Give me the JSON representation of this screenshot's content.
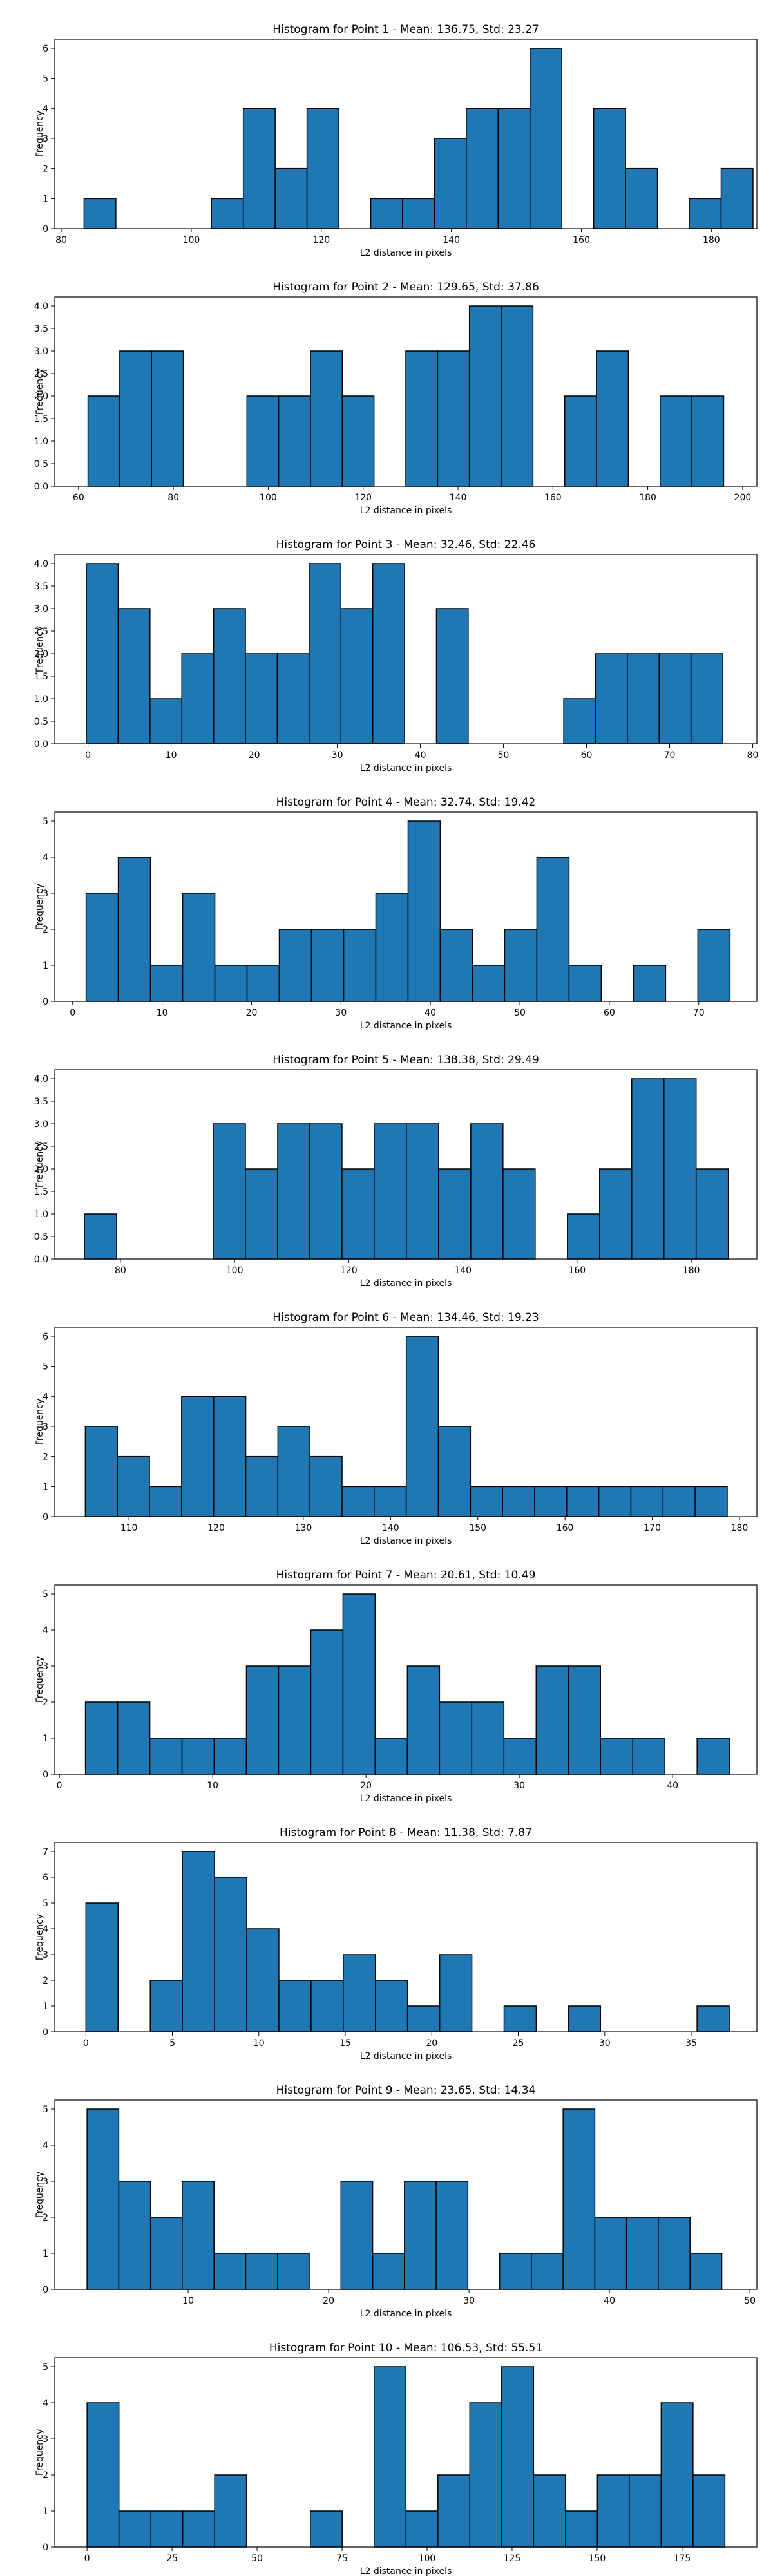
{
  "style": {
    "bar_color": "#1f77b4",
    "edge_color": "#000000",
    "background": "#ffffff"
  },
  "chart_data": [
    {
      "type": "bar",
      "title": "Histogram for Point 1 - Mean: 136.75, Std: 23.27",
      "xlabel": "L2 distance in pixels",
      "ylabel": "Frequency",
      "xlim": [
        79,
        187
      ],
      "ylim": [
        0,
        6.3
      ],
      "xticks": [
        80,
        100,
        120,
        140,
        160,
        180
      ],
      "yticks": [
        0,
        1,
        2,
        3,
        4,
        5,
        6
      ],
      "bin_start": 83.5,
      "bin_width": 4.9,
      "counts": [
        1,
        0,
        0,
        0,
        1,
        4,
        2,
        4,
        0,
        1,
        1,
        3,
        4,
        4,
        6,
        0,
        4,
        2,
        0,
        1,
        2
      ]
    },
    {
      "type": "bar",
      "title": "Histogram for Point 2 - Mean: 129.65, Std: 37.86",
      "xlabel": "L2 distance in pixels",
      "ylabel": "Frequency",
      "xlim": [
        55,
        203
      ],
      "ylim": [
        0,
        4.2
      ],
      "xticks": [
        60,
        80,
        100,
        120,
        140,
        160,
        180,
        200
      ],
      "yticks": [
        0,
        0.5,
        1.0,
        1.5,
        2.0,
        2.5,
        3.0,
        3.5,
        4.0
      ],
      "bin_start": 62,
      "bin_width": 6.7,
      "counts": [
        2,
        3,
        3,
        0,
        0,
        2,
        2,
        3,
        2,
        0,
        3,
        3,
        4,
        4,
        0,
        2,
        3,
        0,
        2,
        2
      ]
    },
    {
      "type": "bar",
      "title": "Histogram for Point 3 - Mean: 32.46, Std: 22.46",
      "xlabel": "L2 distance in pixels",
      "ylabel": "Frequency",
      "xlim": [
        -4,
        80.5
      ],
      "ylim": [
        0,
        4.2
      ],
      "xticks": [
        0,
        10,
        20,
        30,
        40,
        50,
        60,
        70,
        80
      ],
      "yticks": [
        0,
        0.5,
        1.0,
        1.5,
        2.0,
        2.5,
        3.0,
        3.5,
        4.0
      ],
      "bin_start": -0.2,
      "bin_width": 3.83,
      "counts": [
        4,
        3,
        1,
        2,
        3,
        2,
        2,
        4,
        3,
        4,
        0,
        3,
        0,
        0,
        0,
        1,
        2,
        2,
        2,
        2
      ]
    },
    {
      "type": "bar",
      "title": "Histogram for Point 4 - Mean: 32.74, Std: 19.42",
      "xlabel": "L2 distance in pixels",
      "ylabel": "Frequency",
      "xlim": [
        -2,
        76.5
      ],
      "ylim": [
        0,
        5.25
      ],
      "xticks": [
        0,
        10,
        20,
        30,
        40,
        50,
        60,
        70
      ],
      "yticks": [
        0,
        1,
        2,
        3,
        4,
        5
      ],
      "bin_start": 1.5,
      "bin_width": 3.6,
      "counts": [
        3,
        4,
        1,
        3,
        1,
        1,
        2,
        2,
        2,
        3,
        5,
        2,
        1,
        2,
        4,
        1,
        0,
        1,
        0,
        2
      ]
    },
    {
      "type": "bar",
      "title": "Histogram for Point 5 - Mean: 138.38, Std: 29.49",
      "xlabel": "L2 distance in pixels",
      "ylabel": "Frequency",
      "xlim": [
        68.5,
        191.5
      ],
      "ylim": [
        0,
        4.2
      ],
      "xticks": [
        80,
        100,
        120,
        140,
        160,
        180
      ],
      "yticks": [
        0,
        0.5,
        1.0,
        1.5,
        2.0,
        2.5,
        3.0,
        3.5,
        4.0
      ],
      "bin_start": 73.7,
      "bin_width": 5.64,
      "counts": [
        1,
        0,
        0,
        0,
        3,
        2,
        3,
        3,
        2,
        3,
        3,
        2,
        3,
        2,
        0,
        1,
        2,
        4,
        4,
        2
      ]
    },
    {
      "type": "bar",
      "title": "Histogram for Point 6 - Mean: 134.46, Std: 19.23",
      "xlabel": "L2 distance in pixels",
      "ylabel": "Frequency",
      "xlim": [
        101.5,
        182
      ],
      "ylim": [
        0,
        6.3
      ],
      "xticks": [
        110,
        120,
        130,
        140,
        150,
        160,
        170,
        180
      ],
      "yticks": [
        0,
        1,
        2,
        3,
        4,
        5,
        6
      ],
      "bin_start": 105,
      "bin_width": 3.68,
      "counts": [
        3,
        2,
        1,
        4,
        4,
        2,
        3,
        2,
        1,
        1,
        6,
        3,
        1,
        1,
        1,
        1,
        1,
        1,
        1,
        1
      ]
    },
    {
      "type": "bar",
      "title": "Histogram for Point 7 - Mean: 20.61, Std: 10.49",
      "xlabel": "L2 distance in pixels",
      "ylabel": "Frequency",
      "xlim": [
        -0.3,
        45.5
      ],
      "ylim": [
        0,
        5.25
      ],
      "xticks": [
        0,
        10,
        20,
        30,
        40
      ],
      "yticks": [
        0,
        1,
        2,
        3,
        4,
        5
      ],
      "bin_start": 1.7,
      "bin_width": 2.1,
      "counts": [
        2,
        2,
        1,
        1,
        1,
        3,
        3,
        4,
        5,
        1,
        3,
        2,
        2,
        1,
        3,
        3,
        1,
        1,
        0,
        1
      ]
    },
    {
      "type": "bar",
      "title": "Histogram for Point 8 - Mean: 11.38, Std: 7.87",
      "xlabel": "L2 distance in pixels",
      "ylabel": "Frequency",
      "xlim": [
        -1.8,
        38.8
      ],
      "ylim": [
        0,
        7.35
      ],
      "xticks": [
        0,
        5,
        10,
        15,
        20,
        25,
        30,
        35
      ],
      "yticks": [
        0,
        1,
        2,
        3,
        4,
        5,
        6,
        7
      ],
      "bin_start": 0,
      "bin_width": 1.86,
      "counts": [
        5,
        0,
        2,
        7,
        6,
        4,
        2,
        2,
        3,
        2,
        1,
        3,
        0,
        1,
        0,
        1,
        0,
        0,
        0,
        1
      ]
    },
    {
      "type": "bar",
      "title": "Histogram for Point 9 - Mean: 23.65, Std: 14.34",
      "xlabel": "L2 distance in pixels",
      "ylabel": "Frequency",
      "xlim": [
        0.5,
        50.5
      ],
      "ylim": [
        0,
        5.25
      ],
      "xticks": [
        10,
        20,
        30,
        40,
        50
      ],
      "yticks": [
        0,
        1,
        2,
        3,
        4,
        5
      ],
      "bin_start": 2.8,
      "bin_width": 2.26,
      "counts": [
        5,
        3,
        2,
        3,
        1,
        1,
        1,
        0,
        3,
        1,
        3,
        3,
        0,
        1,
        1,
        5,
        2,
        2,
        2,
        1
      ]
    },
    {
      "type": "bar",
      "title": "Histogram for Point 10 - Mean: 106.53, Std: 55.51",
      "xlabel": "L2 distance in pixels",
      "ylabel": "Frequency",
      "xlim": [
        -9.5,
        197
      ],
      "ylim": [
        0,
        5.25
      ],
      "xticks": [
        0,
        25,
        50,
        75,
        100,
        125,
        150,
        175
      ],
      "yticks": [
        0,
        1,
        2,
        3,
        4,
        5
      ],
      "bin_start": 0,
      "bin_width": 9.38,
      "counts": [
        4,
        1,
        1,
        1,
        2,
        0,
        0,
        1,
        0,
        5,
        1,
        2,
        4,
        5,
        2,
        1,
        2,
        2,
        4,
        2
      ]
    }
  ]
}
